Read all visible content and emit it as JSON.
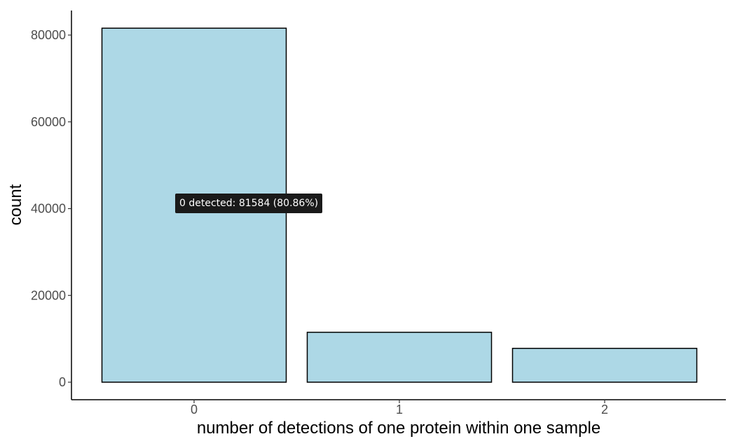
{
  "chart_data": {
    "type": "bar",
    "categories": [
      "0",
      "1",
      "2"
    ],
    "values": [
      81584,
      11500,
      7800
    ],
    "xlabel": "number of detections of one protein within one sample",
    "ylabel": "count",
    "ylim": [
      0,
      85000
    ],
    "yticks": [
      0,
      20000,
      40000,
      60000,
      80000
    ],
    "ytick_labels": [
      "0",
      "20000",
      "40000",
      "60000",
      "80000"
    ],
    "grid": false,
    "bar_fill": "#add8e6",
    "bar_stroke": "#000000"
  },
  "tooltip": {
    "category": "0",
    "text": "0 detected: 81584 (80.86%)"
  }
}
